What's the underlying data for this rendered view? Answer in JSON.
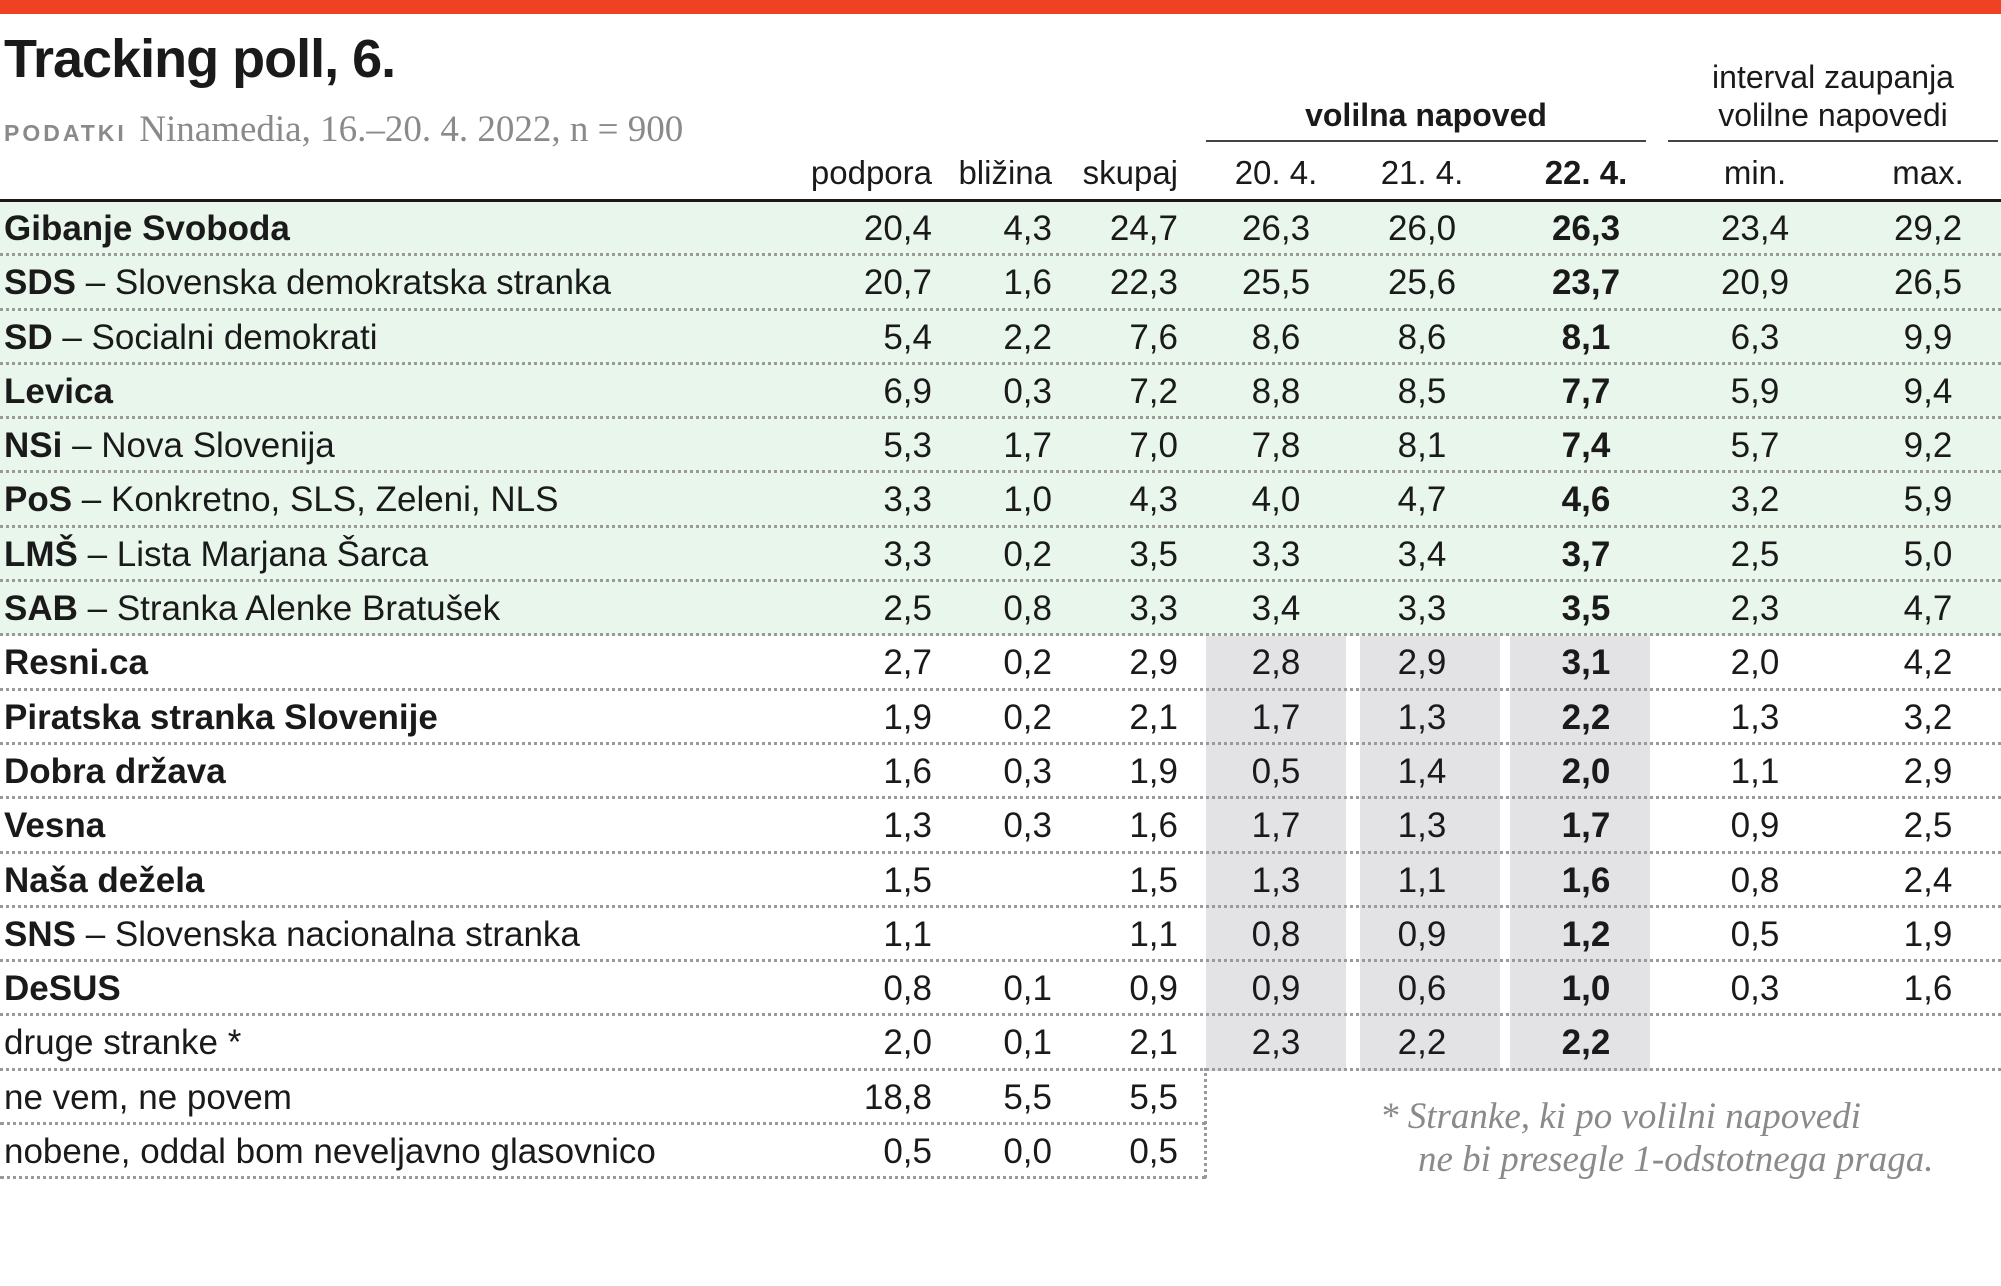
{
  "title": "Tracking poll, 6.",
  "source": {
    "label": "PODATKI",
    "text": "Ninamedia, 16.–20. 4. 2022, n = 900"
  },
  "group_headers": {
    "forecast": "volilna napoved",
    "interval_line1": "interval zaupanja",
    "interval_line2": "volilne napovedi"
  },
  "colors": {
    "accent": "#ef4123",
    "band_green": "#bfe2c7",
    "row_green": "#e9f6ec",
    "band_grey": "#e3e3e5",
    "muted_text": "#8a8a8a"
  },
  "footnote": {
    "line1": "* Stranke, ki po volilni napovedi",
    "line2": "ne bi presegle 1-odstotnega praga."
  },
  "chart_data": {
    "type": "table",
    "title": "Tracking poll, 6.",
    "columns": [
      "podpora",
      "bližina",
      "skupaj",
      "20. 4.",
      "21. 4.",
      "22. 4.",
      "min.",
      "max."
    ],
    "rows": [
      {
        "abbr": "Gibanje Svoboda",
        "full": "",
        "values": [
          "20,4",
          "4,3",
          "24,7",
          "26,3",
          "26,0",
          "26,3",
          "23,4",
          "29,2"
        ],
        "group": "above"
      },
      {
        "abbr": "SDS",
        "full": " – Slovenska demokratska stranka",
        "values": [
          "20,7",
          "1,6",
          "22,3",
          "25,5",
          "25,6",
          "23,7",
          "20,9",
          "26,5"
        ],
        "group": "above"
      },
      {
        "abbr": "SD",
        "full": " – Socialni demokrati",
        "values": [
          "5,4",
          "2,2",
          "7,6",
          "8,6",
          "8,6",
          "8,1",
          "6,3",
          "9,9"
        ],
        "group": "above"
      },
      {
        "abbr": "Levica",
        "full": "",
        "values": [
          "6,9",
          "0,3",
          "7,2",
          "8,8",
          "8,5",
          "7,7",
          "5,9",
          "9,4"
        ],
        "group": "above"
      },
      {
        "abbr": "NSi",
        "full": " – Nova Slovenija",
        "values": [
          "5,3",
          "1,7",
          "7,0",
          "7,8",
          "8,1",
          "7,4",
          "5,7",
          "9,2"
        ],
        "group": "above"
      },
      {
        "abbr": "PoS",
        "full": " – Konkretno, SLS, Zeleni, NLS",
        "values": [
          "3,3",
          "1,0",
          "4,3",
          "4,0",
          "4,7",
          "4,6",
          "3,2",
          "5,9"
        ],
        "group": "above"
      },
      {
        "abbr": "LMŠ",
        "full": " – Lista Marjana Šarca",
        "values": [
          "3,3",
          "0,2",
          "3,5",
          "3,3",
          "3,4",
          "3,7",
          "2,5",
          "5,0"
        ],
        "group": "above"
      },
      {
        "abbr": "SAB",
        "full": " – Stranka Alenke Bratušek",
        "values": [
          "2,5",
          "0,8",
          "3,3",
          "3,4",
          "3,3",
          "3,5",
          "2,3",
          "4,7"
        ],
        "group": "above"
      },
      {
        "abbr": "Resni.ca",
        "full": "",
        "values": [
          "2,7",
          "0,2",
          "2,9",
          "2,8",
          "2,9",
          "3,1",
          "2,0",
          "4,2"
        ],
        "group": "below"
      },
      {
        "abbr": "Piratska stranka Slovenije",
        "full": "",
        "values": [
          "1,9",
          "0,2",
          "2,1",
          "1,7",
          "1,3",
          "2,2",
          "1,3",
          "3,2"
        ],
        "group": "below"
      },
      {
        "abbr": "Dobra država",
        "full": "",
        "values": [
          "1,6",
          "0,3",
          "1,9",
          "0,5",
          "1,4",
          "2,0",
          "1,1",
          "2,9"
        ],
        "group": "below"
      },
      {
        "abbr": "Vesna",
        "full": "",
        "values": [
          "1,3",
          "0,3",
          "1,6",
          "1,7",
          "1,3",
          "1,7",
          "0,9",
          "2,5"
        ],
        "group": "below"
      },
      {
        "abbr": "Naša dežela",
        "full": "",
        "values": [
          "1,5",
          "",
          "1,5",
          "1,3",
          "1,1",
          "1,6",
          "0,8",
          "2,4"
        ],
        "group": "below"
      },
      {
        "abbr": "SNS",
        "full": " – Slovenska nacionalna stranka",
        "values": [
          "1,1",
          "",
          "1,1",
          "0,8",
          "0,9",
          "1,2",
          "0,5",
          "1,9"
        ],
        "group": "below"
      },
      {
        "abbr": "DeSUS",
        "full": "",
        "values": [
          "0,8",
          "0,1",
          "0,9",
          "0,9",
          "0,6",
          "1,0",
          "0,3",
          "1,6"
        ],
        "group": "below"
      },
      {
        "abbr": "",
        "full": "druge stranke *",
        "values": [
          "2,0",
          "0,1",
          "2,1",
          "2,3",
          "2,2",
          "2,2",
          "",
          ""
        ],
        "group": "below"
      },
      {
        "abbr": "",
        "full": "ne vem, ne povem",
        "values": [
          "18,8",
          "5,5",
          "5,5",
          "",
          "",
          "",
          "",
          ""
        ],
        "group": "other"
      },
      {
        "abbr": "",
        "full": "nobene, oddal bom neveljavno glasovnico",
        "values": [
          "0,5",
          "0,0",
          "0,5",
          "",
          "",
          "",
          "",
          ""
        ],
        "group": "other"
      }
    ]
  }
}
